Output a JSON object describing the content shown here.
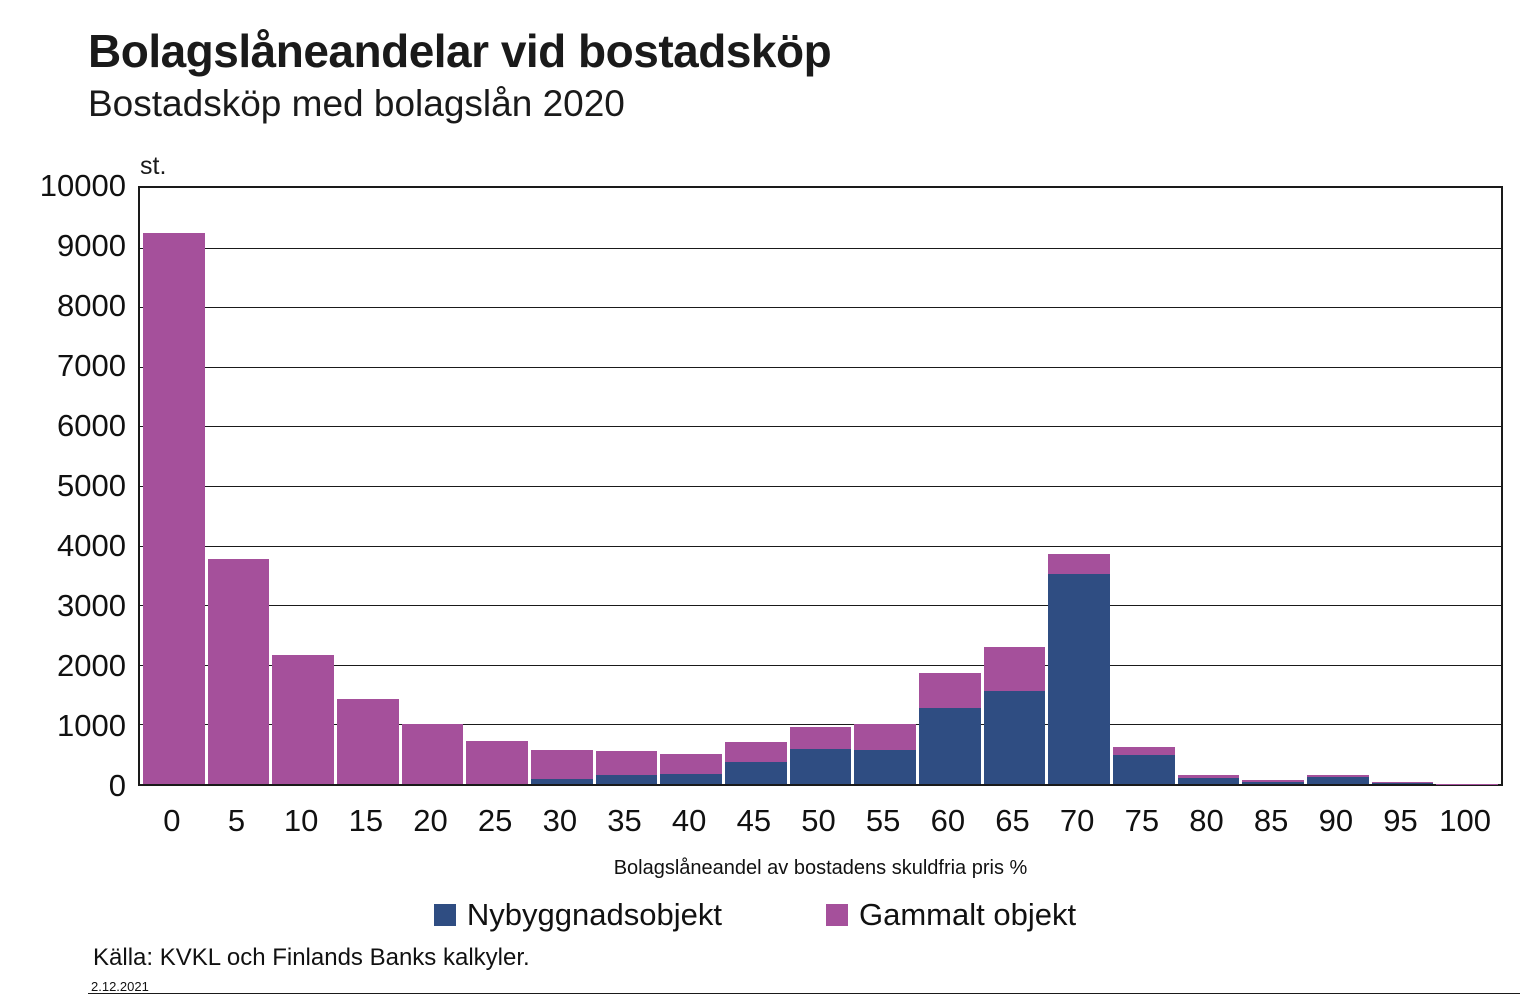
{
  "header": {
    "title": "Bolagslåneandelar vid bostadsköp",
    "subtitle": "Bostadsköp med bolagslån 2020"
  },
  "chart": {
    "unit_label": "st.",
    "y_ticks": [
      "10000",
      "9000",
      "8000",
      "7000",
      "6000",
      "5000",
      "4000",
      "3000",
      "2000",
      "1000",
      "0"
    ],
    "x_ticks": [
      "0",
      "5",
      "10",
      "15",
      "20",
      "25",
      "30",
      "35",
      "40",
      "45",
      "50",
      "55",
      "60",
      "65",
      "70",
      "75",
      "80",
      "85",
      "90",
      "95",
      "100"
    ],
    "x_axis_title": "Bolagslåneandel av bostadens skuldfria pris %"
  },
  "legend": {
    "items": [
      {
        "label": "Nybyggnadsobjekt",
        "color": "#2F4D82"
      },
      {
        "label": "Gammalt objekt",
        "color": "#A5509B"
      }
    ]
  },
  "footer": {
    "source": "Källa: KVKL och Finlands Banks kalkyler.",
    "date": "2.12.2021"
  },
  "colors": {
    "new_objects": "#2F4D82",
    "old_objects": "#A5509B"
  },
  "chart_data": {
    "type": "bar",
    "stacked": true,
    "title": "Bolagslåneandelar vid bostadsköp",
    "subtitle": "Bostadsköp med bolagslån 2020",
    "xlabel": "Bolagslåneandel av bostadens skuldfria pris %",
    "ylabel": "st.",
    "ylim": [
      0,
      10000
    ],
    "grid": true,
    "legend_position": "bottom",
    "categories": [
      0,
      5,
      10,
      15,
      20,
      25,
      30,
      35,
      40,
      45,
      50,
      55,
      60,
      65,
      70,
      75,
      80,
      85,
      90,
      95,
      100
    ],
    "series": [
      {
        "name": "Nybyggnadsobjekt",
        "color": "#2F4D82",
        "values": [
          0,
          0,
          0,
          0,
          0,
          0,
          80,
          155,
          170,
          370,
          585,
          575,
          1280,
          1555,
          3530,
          490,
          95,
          30,
          120,
          10,
          0
        ]
      },
      {
        "name": "Gammalt objekt",
        "color": "#A5509B",
        "values": [
          9250,
          3780,
          2170,
          1430,
          1000,
          720,
          490,
          405,
          330,
          340,
          375,
          435,
          580,
          740,
          325,
          125,
          60,
          30,
          25,
          20,
          5
        ]
      }
    ]
  }
}
